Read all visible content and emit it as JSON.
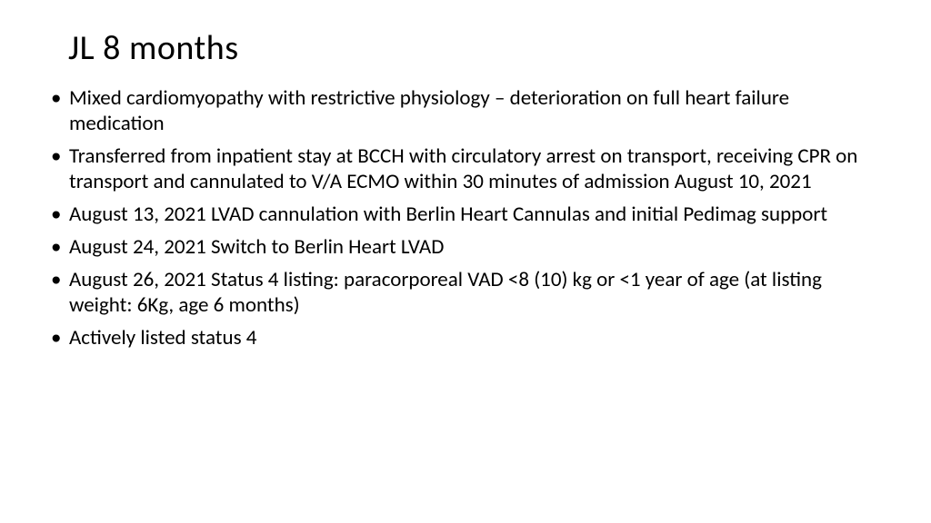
{
  "slide": {
    "title": "JL 8 months",
    "title_fontsize": 38,
    "title_color": "#000000",
    "body_fontsize": 23,
    "body_color": "#000000",
    "background_color": "#ffffff",
    "bullets": [
      "Mixed cardiomyopathy with restrictive physiology – deterioration on full heart failure medication",
      "Transferred from inpatient stay at BCCH with circulatory arrest on transport, receiving CPR on transport and cannulated to V/A ECMO within 30 minutes of admission August 10, 2021",
      "August 13, 2021 LVAD cannulation with Berlin Heart Cannulas and initial Pedimag support",
      "August 24, 2021 Switch to Berlin Heart LVAD",
      "August 26, 2021 Status 4 listing: paracorporeal VAD <8 (10) kg or <1 year of age (at listing weight: 6Kg, age 6 months)",
      "Actively listed status 4"
    ]
  }
}
